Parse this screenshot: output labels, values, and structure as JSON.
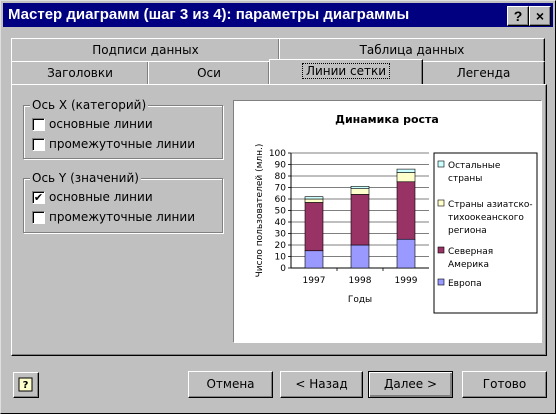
{
  "window": {
    "title": "Мастер диаграмм (шаг 3 из 4): параметры диаграммы",
    "help_btn": "?",
    "close_btn": "×"
  },
  "tabs_back": [
    "Подписи данных",
    "Таблица данных"
  ],
  "tabs_front": [
    "Заголовки",
    "Оси",
    "Линии сетки",
    "Легенда"
  ],
  "active_tab": "Линии сетки",
  "x_axis_group": {
    "label": "Ось X (категорий)",
    "items": [
      {
        "label": "основные линии",
        "checked": false
      },
      {
        "label": "промежуточные линии",
        "checked": false
      }
    ]
  },
  "y_axis_group": {
    "label": "Ось Y (значений)",
    "items": [
      {
        "label": "основные линии",
        "checked": true
      },
      {
        "label": "промежуточные линии",
        "checked": false
      }
    ]
  },
  "chart_data": {
    "type": "bar",
    "stacked": true,
    "title": "Динамика роста",
    "xlabel": "Годы",
    "ylabel": "Число пользователей (млн.)",
    "ylim": [
      0,
      100
    ],
    "yticks": [
      0,
      10,
      20,
      30,
      40,
      50,
      60,
      70,
      80,
      90,
      100
    ],
    "categories": [
      "1997",
      "1998",
      "1999"
    ],
    "series": [
      {
        "name": "Европа",
        "color": "#9999ff",
        "values": [
          15,
          20,
          25
        ]
      },
      {
        "name": "Северная Америка",
        "color": "#993366",
        "values": [
          42,
          44,
          50
        ]
      },
      {
        "name": "Страны азиатско-тихоокеанского региона",
        "color": "#ffffcc",
        "values": [
          3,
          5,
          8
        ]
      },
      {
        "name": "Остальные страны",
        "color": "#ccffff",
        "values": [
          2,
          2,
          3
        ]
      }
    ],
    "legend": {
      "position": "right",
      "lines": [
        [
          "Остальные",
          "страны"
        ],
        [
          "Страны азиатско-",
          "тихоокеанского",
          "региона"
        ],
        [
          "Северная",
          "Америка"
        ],
        [
          "Европа"
        ]
      ]
    },
    "grid": {
      "y_major": true
    }
  },
  "buttons": {
    "cancel": "Отмена",
    "back": "< Назад",
    "next": "Далее >",
    "finish": "Готово"
  }
}
